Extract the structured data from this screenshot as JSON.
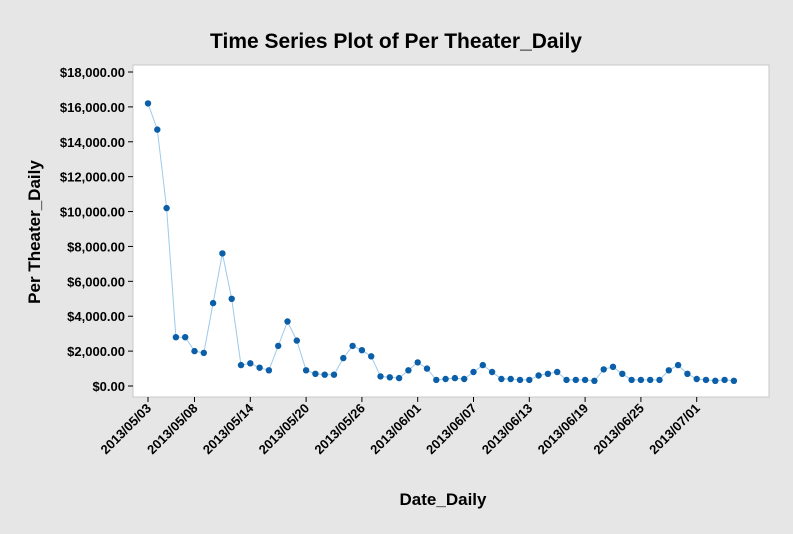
{
  "chart_data": {
    "type": "line",
    "title": "Time Series Plot of Per Theater_Daily",
    "xlabel": "Date_Daily",
    "ylabel": "Per Theater_Daily",
    "ylim": [
      -800,
      18000
    ],
    "y_ticks": [
      "$0.00",
      "$2,000.00",
      "$4,000.00",
      "$6,000.00",
      "$8,000.00",
      "$10,000.00",
      "$12,000.00",
      "$14,000.00",
      "$16,000.00",
      "$18,000.00"
    ],
    "y_tick_values": [
      0,
      2000,
      4000,
      6000,
      8000,
      10000,
      12000,
      14000,
      16000,
      18000
    ],
    "x_ticks": [
      "2013/05/03",
      "2013/05/08",
      "2013/05/14",
      "2013/05/20",
      "2013/05/26",
      "2013/06/01",
      "2013/06/07",
      "2013/06/13",
      "2013/06/19",
      "2013/06/25",
      "2013/07/01"
    ],
    "x_tick_index": [
      0,
      5,
      11,
      17,
      23,
      29,
      35,
      41,
      47,
      53,
      59
    ],
    "grid": false,
    "legend": "none",
    "colors": {
      "line": "#9ecae9",
      "marker": "#0b5ea8",
      "plot_bg": "#ffffff",
      "page_bg": "#e6e6e6"
    },
    "series": [
      {
        "values": [
          16200,
          14700,
          10200,
          2800,
          2800,
          2000,
          1900,
          4750,
          7600,
          5000,
          1200,
          1300,
          1050,
          900,
          2300,
          3700,
          2600,
          900,
          700,
          650,
          650,
          1600,
          2300,
          2050,
          1700,
          550,
          500,
          450,
          900,
          1350,
          1000,
          350,
          400,
          450,
          400,
          800,
          1200,
          800,
          400,
          400,
          350,
          350,
          600,
          700,
          800,
          350,
          350,
          350,
          300,
          950,
          1100,
          700,
          350,
          350,
          350,
          350,
          900,
          1200,
          700,
          400,
          350,
          300,
          350,
          300
        ]
      }
    ]
  }
}
